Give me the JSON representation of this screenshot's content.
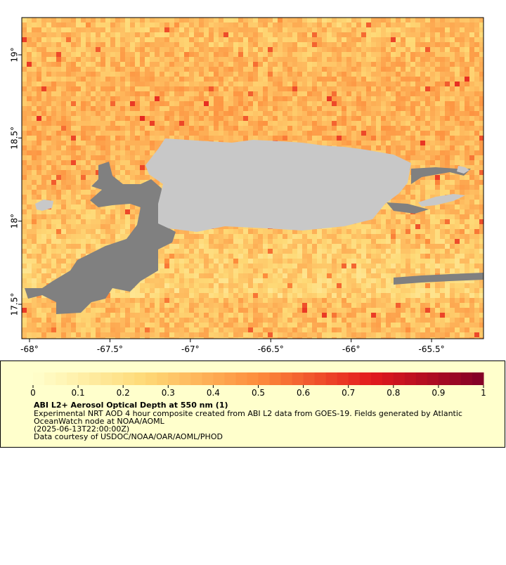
{
  "map": {
    "lon_ticks": [
      {
        "value": -68,
        "label": "-68°"
      },
      {
        "value": -67.5,
        "label": "-67.5°"
      },
      {
        "value": -67,
        "label": "-67°"
      },
      {
        "value": -66.5,
        "label": "-66.5°"
      },
      {
        "value": -66,
        "label": "-66°"
      },
      {
        "value": -65.5,
        "label": "-65.5°"
      }
    ],
    "lat_ticks": [
      {
        "value": 17.5,
        "label": "17.5°"
      },
      {
        "value": 18,
        "label": "18°"
      },
      {
        "value": 18.5,
        "label": "18.5°"
      },
      {
        "value": 19,
        "label": "19°"
      }
    ],
    "xlim": [
      -68.048,
      -65.177
    ],
    "ylim": [
      17.293,
      19.224
    ]
  },
  "colorbar": {
    "lim": [
      0,
      1
    ],
    "ticks": [
      0,
      0.1,
      0.2,
      0.3,
      0.4,
      0.5,
      0.6,
      0.7,
      0.8,
      0.9,
      1
    ]
  },
  "legend": {
    "title": "ABI L2+ Aerosol Optical Depth at 550 nm (1)",
    "lines": [
      "Experimental NRT AOD 4 hour composite created from ABI L2 data from GOES-19. Fields generated by Atlantic",
      "OceanWatch node at NOAA/AOML",
      "(2025-06-13T22:00:00Z)",
      "Data courtesy of USDOC/NOAA/OAR/AOML/PHOD"
    ]
  }
}
